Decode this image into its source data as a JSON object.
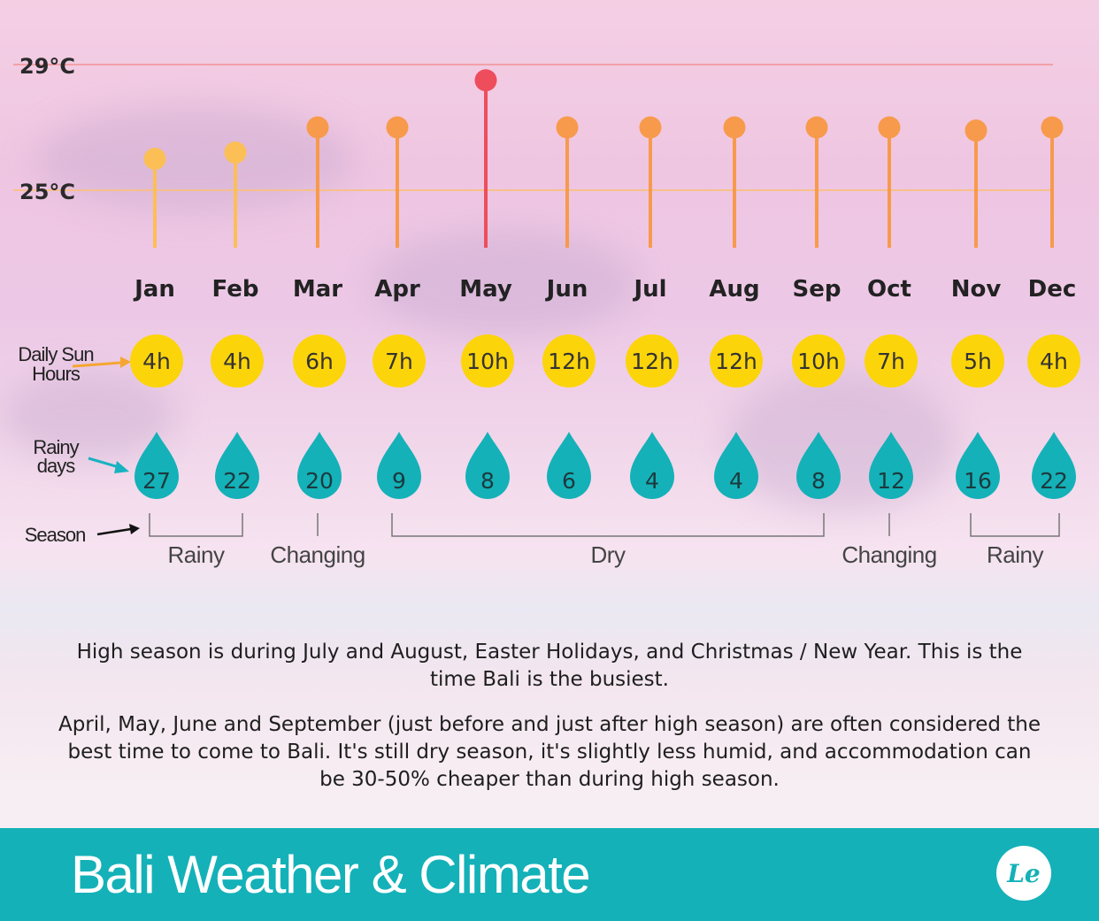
{
  "chart_data": {
    "type": "lollipop",
    "months": [
      "Jan",
      "Feb",
      "Mar",
      "Apr",
      "May",
      "Jun",
      "Jul",
      "Aug",
      "Sep",
      "Oct",
      "Nov",
      "Dec"
    ],
    "temperature": {
      "unit": "°C",
      "ticks": [
        {
          "value": 25,
          "label": "25°C"
        },
        {
          "value": 29,
          "label": "29°C"
        }
      ],
      "values": [
        26.0,
        26.2,
        27.0,
        27.0,
        28.5,
        27.0,
        27.0,
        27.0,
        27.0,
        27.0,
        26.9,
        27.0
      ],
      "colors": [
        "#fbbf56",
        "#fbbf56",
        "#f79a4c",
        "#f79a4c",
        "#ee4d5c",
        "#f79a4c",
        "#f79a4c",
        "#f79a4c",
        "#f79a4c",
        "#f79a4c",
        "#f79a4c",
        "#f79a4c"
      ]
    },
    "sun_hours": {
      "label_line1": "Daily Sun",
      "label_line2": "Hours",
      "values": [
        "4h",
        "4h",
        "6h",
        "7h",
        "10h",
        "12h",
        "12h",
        "12h",
        "10h",
        "7h",
        "5h",
        "4h"
      ]
    },
    "rainy_days": {
      "label_line1": "Rainy",
      "label_line2": "days",
      "values": [
        27,
        22,
        20,
        9,
        8,
        6,
        4,
        4,
        8,
        12,
        16,
        22
      ]
    },
    "seasons": {
      "label": "Season",
      "groups": [
        {
          "name": "Rainy",
          "start": 0,
          "end": 1
        },
        {
          "name": "Changing",
          "start": 2,
          "end": 2
        },
        {
          "name": "Dry",
          "start": 3,
          "end": 8
        },
        {
          "name": "Changing",
          "start": 9,
          "end": 9
        },
        {
          "name": "Rainy",
          "start": 10,
          "end": 11
        }
      ]
    }
  },
  "notes": {
    "high_season": "High season is during July and August, Easter Holidays, and Christmas / New Year. This is the time Bali is the busiest.",
    "best_time": "April, May, June and September (just before and just after high season) are often considered the best time to come to Bali. It's still dry season, it's slightly less humid, and accommodation can be 30-50% cheaper than during high season."
  },
  "footer": {
    "title": "Bali Weather & Climate",
    "logo_text": "Le"
  },
  "colors": {
    "teal": "#14b1b8",
    "sun": "#fcd40a",
    "line_29": "#f3a0a8",
    "line_25": "#f7c08a"
  }
}
